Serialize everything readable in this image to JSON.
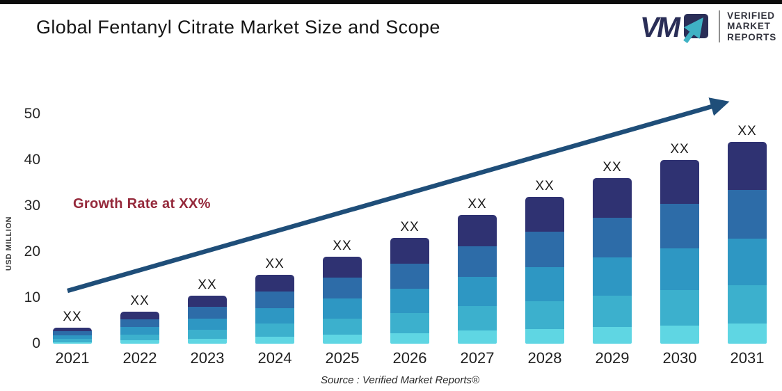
{
  "header": {
    "title": "Global Fentanyl Citrate Market Size and Scope",
    "logo": {
      "mark_letters": "VM",
      "mark_navy": "#2a2e57",
      "mark_arrow_teal": "#3fb2c4",
      "lines": [
        "VERIFIED",
        "MARKET",
        "REPORTS"
      ]
    }
  },
  "chart_data": {
    "type": "bar",
    "stacked": true,
    "title": "Global Fentanyl Citrate Market Size and Scope",
    "categories": [
      "2021",
      "2022",
      "2023",
      "2024",
      "2025",
      "2026",
      "2027",
      "2028",
      "2029",
      "2030",
      "2031"
    ],
    "totals_usd_million_estimated": [
      3.5,
      7,
      10.5,
      15,
      19,
      23,
      28,
      32,
      36,
      40,
      44
    ],
    "bar_value_label": "XX",
    "segment_fractions_bottom_to_top": [
      0.1,
      0.19,
      0.23,
      0.24,
      0.24
    ],
    "segment_colors_bottom_to_top": [
      "#5fd6e3",
      "#3cb0cd",
      "#2e97c3",
      "#2d6ca8",
      "#2f3272"
    ],
    "ylabel": "USD MILLION",
    "yticks": [
      0,
      10,
      20,
      30,
      40,
      50
    ],
    "ylim": [
      0,
      52
    ],
    "grid": false,
    "legend": "none",
    "annotation": {
      "text": "Growth Rate at XX%",
      "color": "#95293b"
    },
    "trend_arrow": {
      "from": [
        97,
        418
      ],
      "to": [
        1041,
        148
      ],
      "color": "#1f4e79"
    },
    "source": "Source :  Verified Market Reports®"
  }
}
